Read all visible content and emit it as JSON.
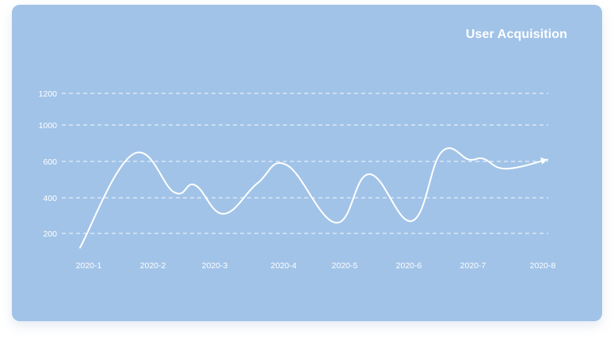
{
  "chart_data": {
    "type": "line",
    "title": "User Acquisition",
    "xlabel": "",
    "ylabel": "",
    "categories": [
      "2020-1",
      "2020-2",
      "2020-3",
      "2020-4",
      "2020-5",
      "2020-6",
      "2020-7",
      "2020-8"
    ],
    "y_ticks": [
      200,
      400,
      600,
      1000,
      1200
    ],
    "grid": "dashed horizontal",
    "series": [
      {
        "points": [
          {
            "x": "2020-1",
            "y": 120
          },
          {
            "x": "2020-2",
            "y": 680
          },
          {
            "x": "2020-3",
            "y": 430
          },
          {
            "x": "2020-3",
            "y": 470
          },
          {
            "x": "2020-3",
            "y": 310
          },
          {
            "x": "2020-4",
            "y": 480
          },
          {
            "x": "2020-4",
            "y": 580
          },
          {
            "x": "2020-5",
            "y": 260
          },
          {
            "x": "2020-5",
            "y": 530
          },
          {
            "x": "2020-6",
            "y": 270
          },
          {
            "x": "2020-6",
            "y": 700
          },
          {
            "x": "2020-7",
            "y": 620
          },
          {
            "x": "2020-7",
            "y": 630
          },
          {
            "x": "2020-7",
            "y": 560
          },
          {
            "x": "2020-8",
            "y": 620
          }
        ]
      }
    ],
    "colors": {
      "background": "#a1c3e8",
      "line": "#ffffff",
      "grid": "#ffffff",
      "text": "#ffffff"
    }
  }
}
